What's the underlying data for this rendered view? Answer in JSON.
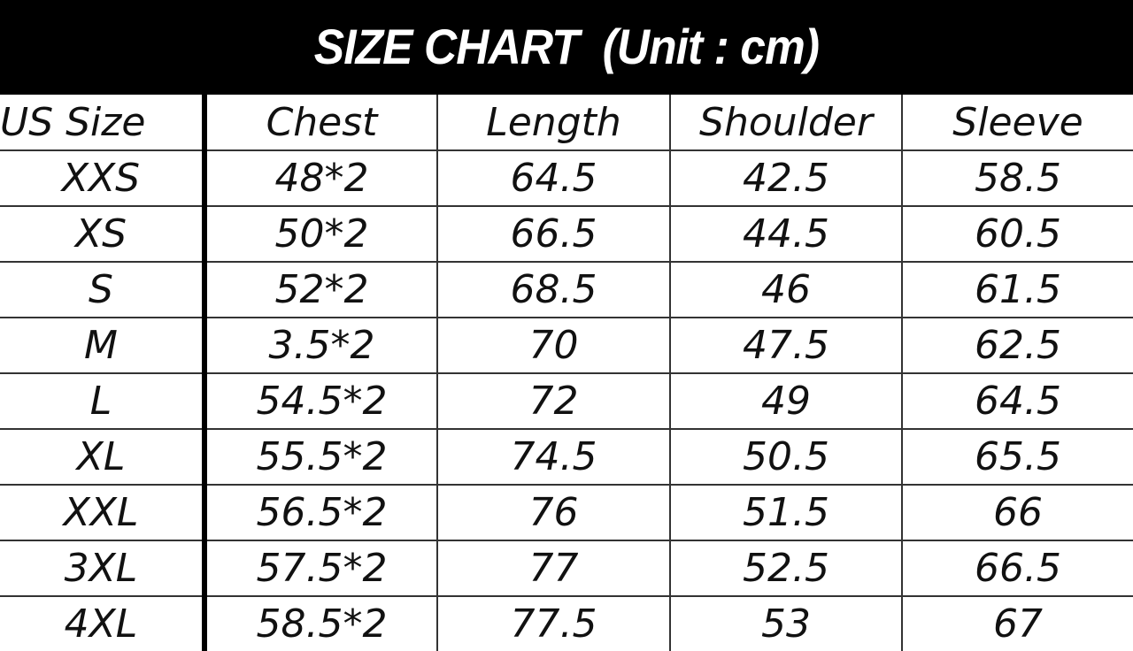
{
  "title": "SIZE CHART  (Unit : cm)",
  "chart_data": {
    "type": "table",
    "columns": [
      "US Size",
      "Chest",
      "Length",
      "Shoulder",
      "Sleeve"
    ],
    "rows": [
      [
        "XXS",
        "48*2",
        "64.5",
        "42.5",
        "58.5"
      ],
      [
        "XS",
        "50*2",
        "66.5",
        "44.5",
        "60.5"
      ],
      [
        "S",
        "52*2",
        "68.5",
        "46",
        "61.5"
      ],
      [
        "M",
        "3.5*2",
        "70",
        "47.5",
        "62.5"
      ],
      [
        "L",
        "54.5*2",
        "72",
        "49",
        "64.5"
      ],
      [
        "XL",
        "55.5*2",
        "74.5",
        "50.5",
        "65.5"
      ],
      [
        "XXL",
        "56.5*2",
        "76",
        "51.5",
        "66"
      ],
      [
        "3XL",
        "57.5*2",
        "77",
        "52.5",
        "66.5"
      ],
      [
        "4XL",
        "58.5*2",
        "77.5",
        "53",
        "67"
      ]
    ]
  }
}
